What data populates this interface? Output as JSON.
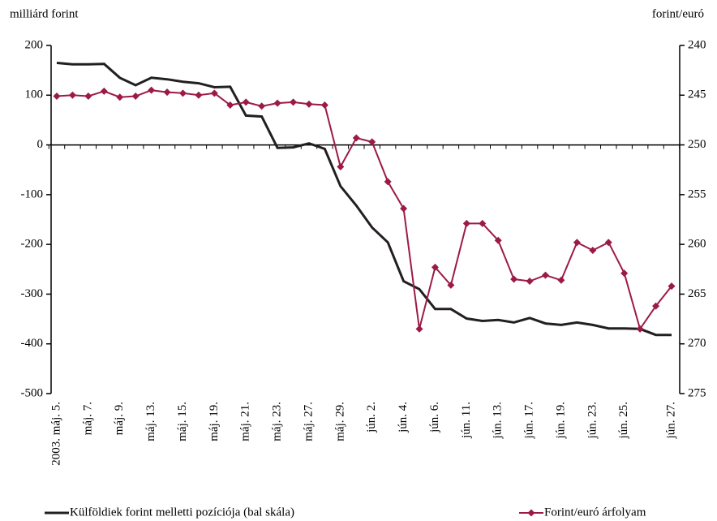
{
  "chart_data": {
    "type": "line",
    "y_title": "milliárd forint",
    "y2_title": "forint/euró",
    "categories": [
      "2003. máj. 5.",
      null,
      "máj. 7.",
      null,
      "máj. 9.",
      null,
      "máj. 13.",
      null,
      "máj. 15.",
      null,
      "máj. 19.",
      null,
      "máj. 21.",
      null,
      "máj. 23.",
      null,
      "máj. 27.",
      null,
      "máj. 29.",
      null,
      "jún. 2.",
      null,
      "jún. 4.",
      null,
      "jún. 6.",
      null,
      "jún. 11.",
      null,
      "jún. 13.",
      null,
      "jún. 17.",
      null,
      "jún. 19.",
      null,
      "jún. 23.",
      null,
      "jún. 25.",
      null,
      null,
      "jún. 27."
    ],
    "series": [
      {
        "name": "Külföldiek forint melletti pozíciója (bal skála)",
        "color": "#231f20",
        "axis": "y",
        "marker": "none",
        "values": [
          165,
          162,
          162,
          163,
          135,
          120,
          135,
          132,
          127,
          124,
          116,
          117,
          59,
          57,
          -6,
          -5,
          3,
          -8,
          -83,
          -122,
          -166,
          -196,
          -274,
          -290,
          -330,
          -330,
          -349,
          -354,
          -352,
          -357,
          -348,
          -359,
          -362,
          -357,
          -362,
          -369,
          -369,
          -370,
          -382,
          -382
        ]
      },
      {
        "name": "Forint/euró árfolyam",
        "color": "#9b1b46",
        "axis": "y2",
        "marker": "diamond",
        "values": [
          245.1,
          245.0,
          245.1,
          244.6,
          245.2,
          245.1,
          244.5,
          244.7,
          244.8,
          245.0,
          244.8,
          246.0,
          245.7,
          246.1,
          245.8,
          245.7,
          245.9,
          246.0,
          252.2,
          249.3,
          249.7,
          253.7,
          256.4,
          268.5,
          262.3,
          264.1,
          257.9,
          257.9,
          259.6,
          263.5,
          263.7,
          263.1,
          263.6,
          259.8,
          260.6,
          259.8,
          262.9,
          268.5,
          266.2,
          264.2
        ]
      }
    ],
    "ylim": [
      -500,
      200
    ],
    "yticks": [
      -500,
      -400,
      -300,
      -200,
      -100,
      0,
      100,
      200
    ],
    "y2lim": [
      240,
      275
    ],
    "y2ticks": [
      240,
      245,
      250,
      255,
      260,
      265,
      270,
      275
    ],
    "y2_reversed": true,
    "grid": false
  }
}
